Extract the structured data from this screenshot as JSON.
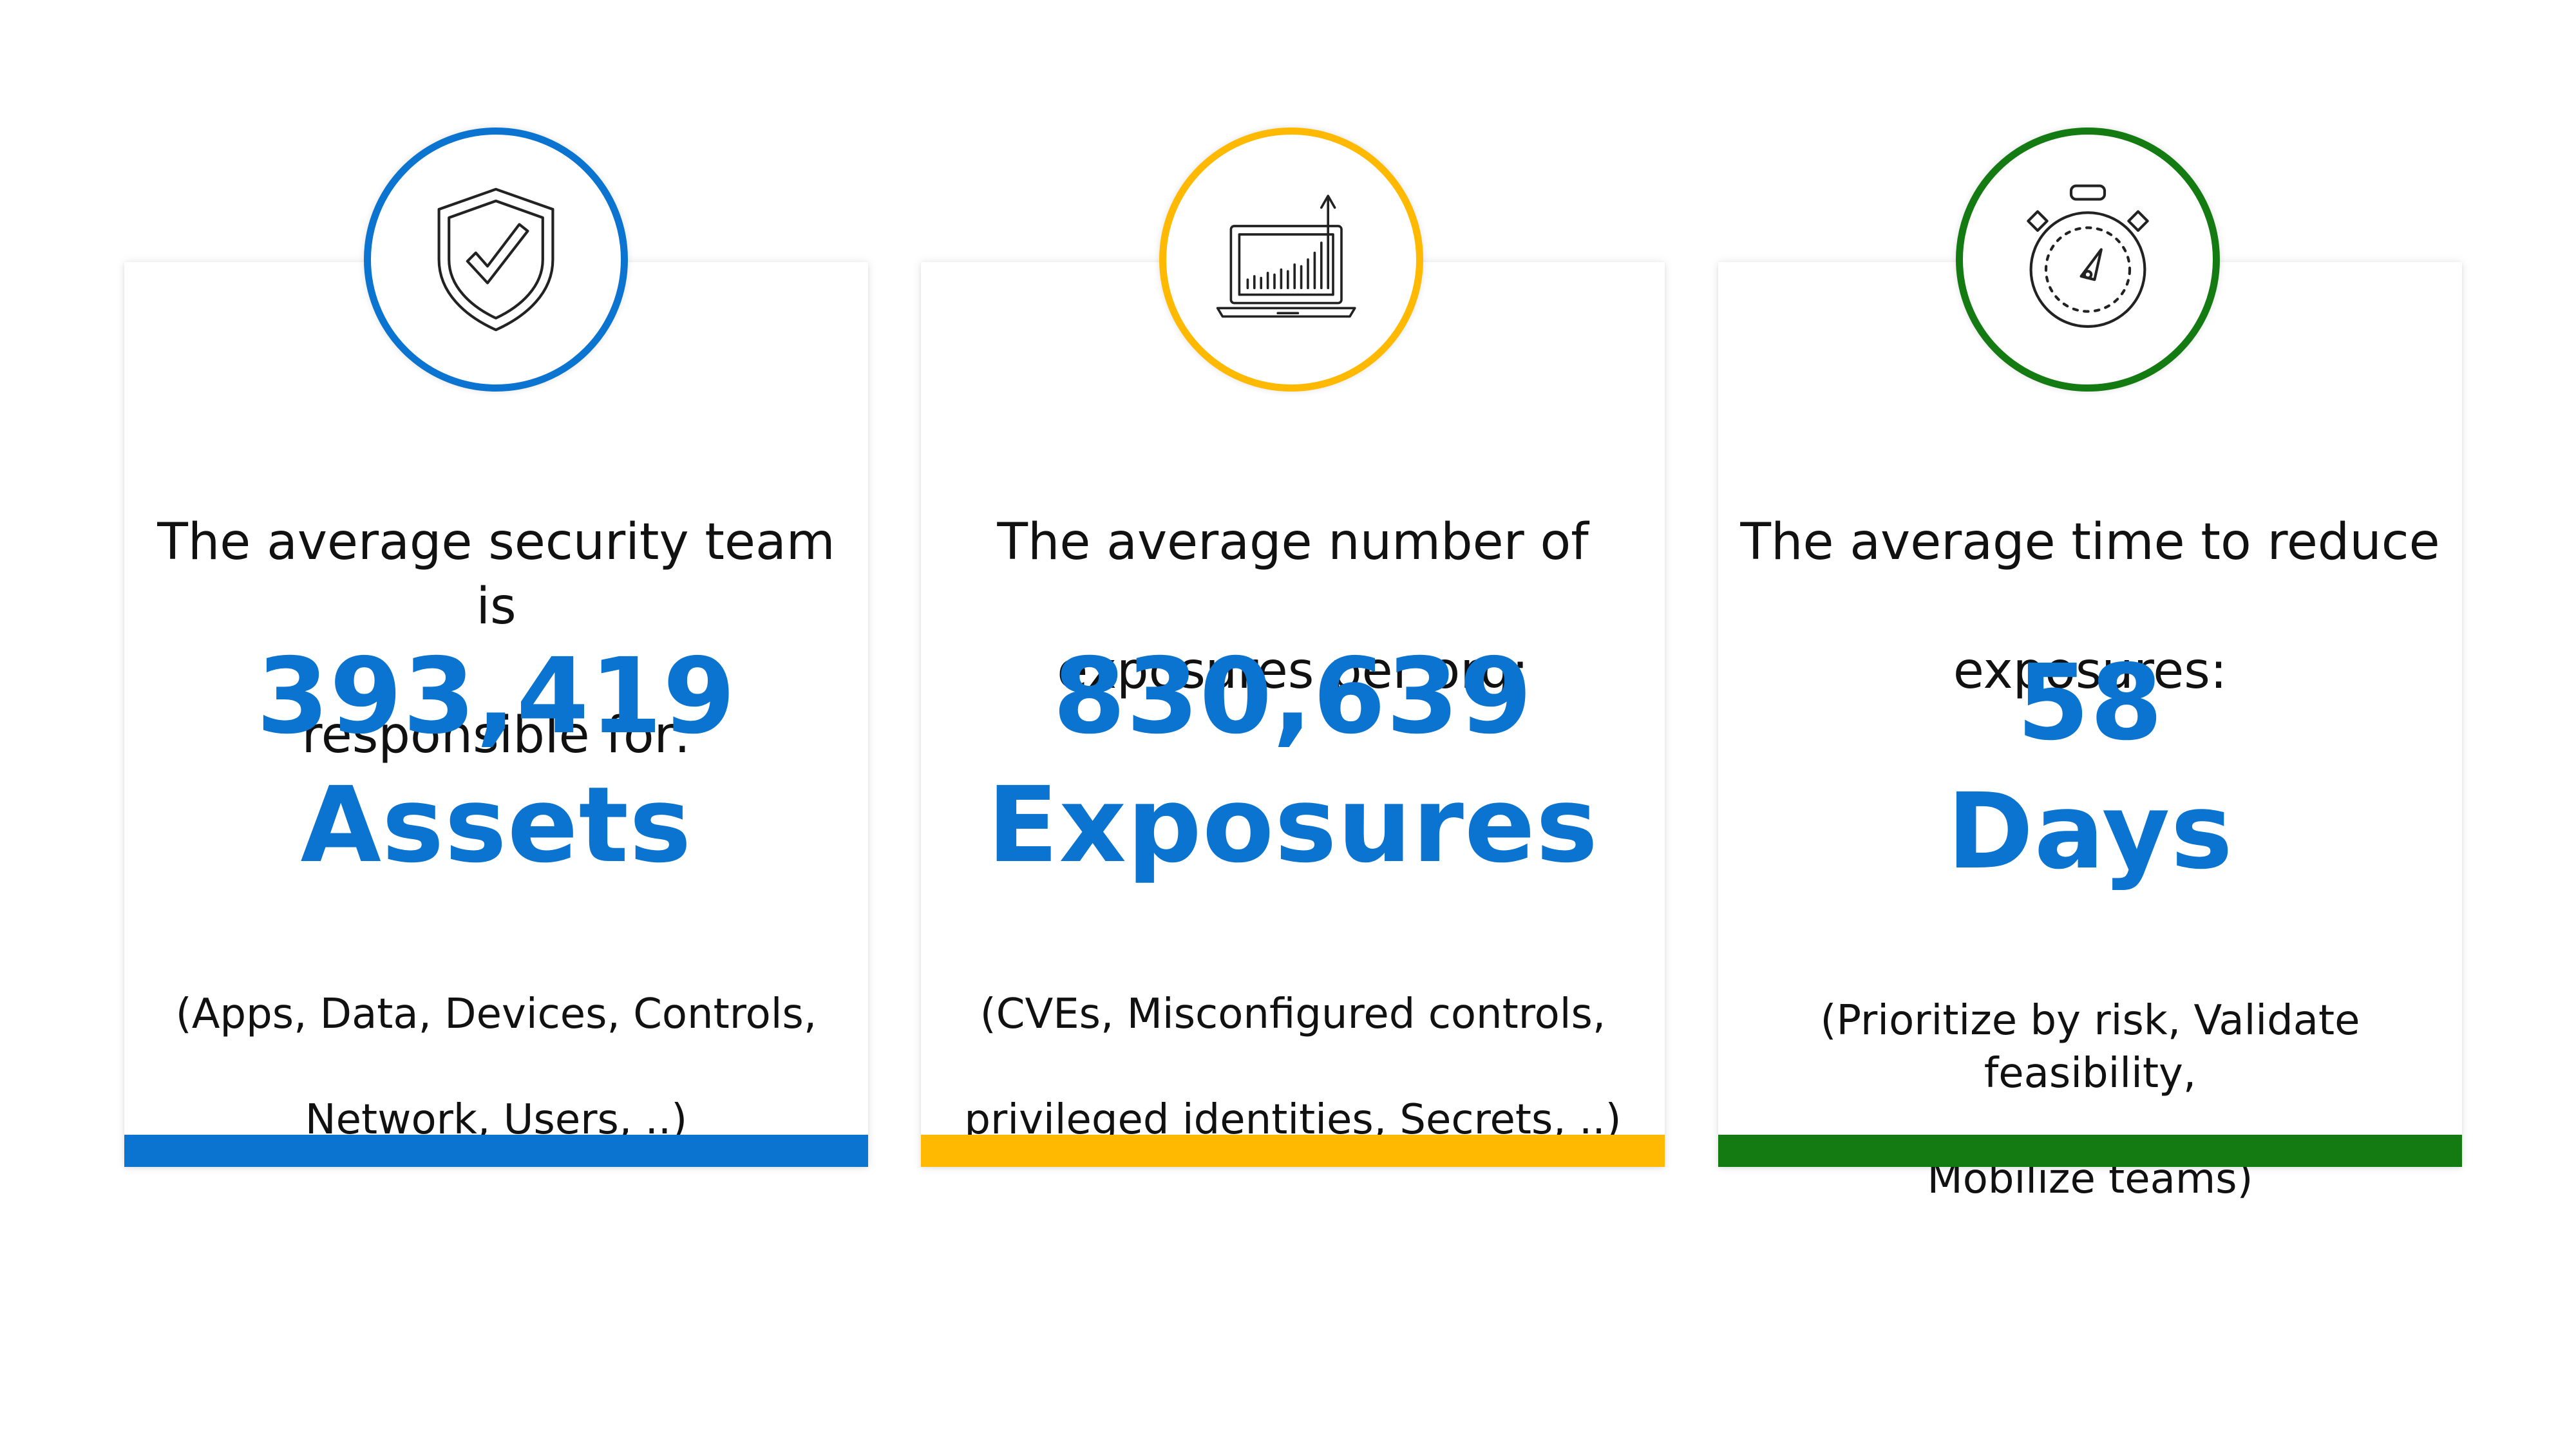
{
  "colors": {
    "blue": "#0A74D0",
    "yellow": "#FFB900",
    "green": "#137B12",
    "number_text": "#0A74D0"
  },
  "cards": [
    {
      "icon": "shield-check-icon",
      "heading_line1": "The average security team is",
      "heading_line2": "responsible for:",
      "number": "393,419",
      "unit": "Assets",
      "sub_line1": "(Apps, Data, Devices, Controls,",
      "sub_line2": "Network, Users, ..)"
    },
    {
      "icon": "laptop-chart-icon",
      "heading_line1": "The average number of",
      "heading_line2": "exposures per org:",
      "number": "830,639",
      "unit": "Exposures",
      "sub_line1": "(CVEs, Misconfigured controls,",
      "sub_line2": "privileged identities, Secrets, ..)"
    },
    {
      "icon": "stopwatch-icon",
      "heading_line1": "The average time to reduce",
      "heading_line2": "exposures:",
      "number": "58",
      "unit": "Days",
      "sub_line1": "(Prioritize by risk, Validate feasibility,",
      "sub_line2": "Mobilize teams)"
    }
  ]
}
